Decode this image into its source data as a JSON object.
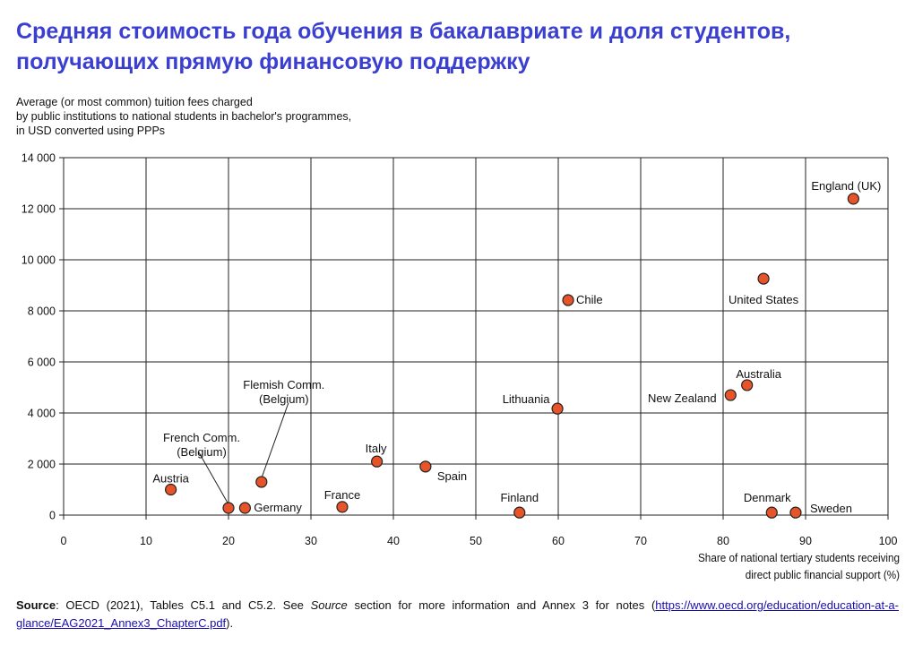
{
  "title": "Средняя стоимость года обучения в бакалавриате и доля студентов, получающих прямую финансовую поддержку",
  "source": {
    "bold": "Source",
    "text1": ": OECD (2021), Tables C5.1 and C5.2. See ",
    "italic": "Source",
    "text2": " section for more information and Annex 3 for notes (",
    "link": "https://www.oecd.org/education/education-at-a-glance/EAG2021_Annex3_ChapterC.pdf",
    "text3": ")."
  },
  "chart_data": {
    "type": "scatter",
    "ylabel": "Average (or most common) tuition fees charged\nby public institutions to national students in bachelor's programmes,\nin USD converted using PPPs",
    "xlabel": "Share of national tertiary students receiving\ndirect public financial support (%)",
    "xlim": [
      0,
      100
    ],
    "ylim": [
      0,
      14000
    ],
    "xticks": [
      0,
      10,
      20,
      30,
      40,
      50,
      60,
      70,
      80,
      90,
      100
    ],
    "yticks": [
      0,
      2000,
      4000,
      6000,
      8000,
      10000,
      12000,
      14000
    ],
    "ytick_labels": [
      "0",
      "2 000",
      "4 000",
      "6 000",
      "8 000",
      "10 000",
      "12 000",
      "14 000"
    ],
    "grid": true,
    "marker_color": "#e8542a",
    "points": [
      {
        "label": "Austria",
        "x": 13,
        "y": 1000
      },
      {
        "label": "French Comm.\n(Belgium)",
        "x": 20,
        "y": 280
      },
      {
        "label": "Germany",
        "x": 22,
        "y": 280
      },
      {
        "label": "Flemish Comm.\n(Belgium)",
        "x": 24,
        "y": 1300
      },
      {
        "label": "France",
        "x": 33.8,
        "y": 320
      },
      {
        "label": "Italy",
        "x": 38,
        "y": 2100
      },
      {
        "label": "Spain",
        "x": 43.9,
        "y": 1900
      },
      {
        "label": "Finland",
        "x": 55.3,
        "y": 100
      },
      {
        "label": "Lithuania",
        "x": 59.9,
        "y": 4170
      },
      {
        "label": "Chile",
        "x": 61.2,
        "y": 8420
      },
      {
        "label": "New Zealand",
        "x": 80.9,
        "y": 4700
      },
      {
        "label": "Australia",
        "x": 82.9,
        "y": 5090
      },
      {
        "label": "United States",
        "x": 84.9,
        "y": 9260
      },
      {
        "label": "Denmark",
        "x": 85.9,
        "y": 100
      },
      {
        "label": "Sweden",
        "x": 88.8,
        "y": 100
      },
      {
        "label": "England (UK)",
        "x": 95.8,
        "y": 12390
      }
    ]
  }
}
